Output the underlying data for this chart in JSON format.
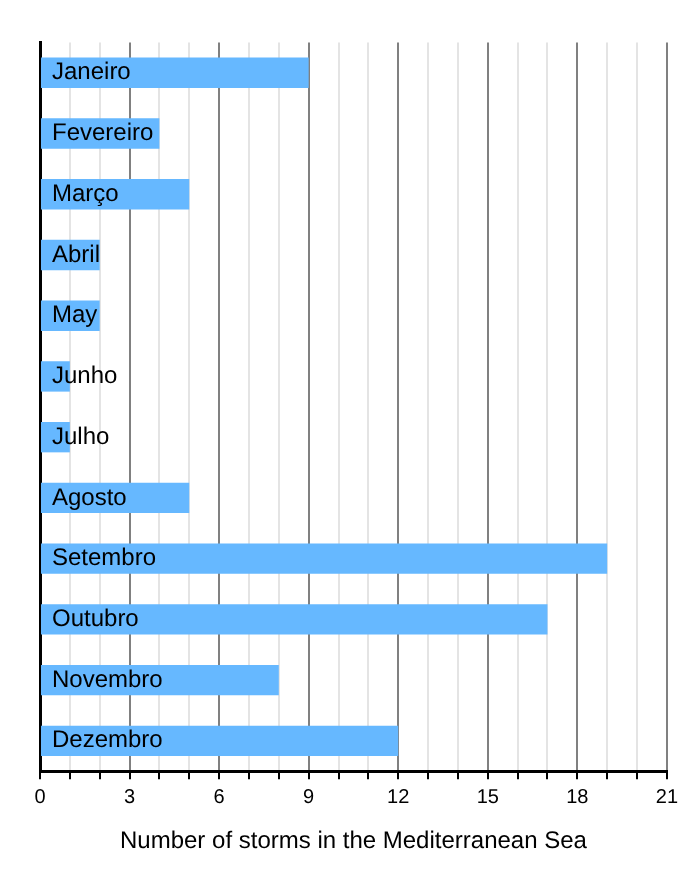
{
  "chart_data": {
    "type": "bar",
    "orientation": "horizontal",
    "xlabel": "Number of storms in the Mediterranean Sea",
    "categories": [
      "Janeiro",
      "Fevereiro",
      "Março",
      "Abril",
      "May",
      "Junho",
      "Julho",
      "Agosto",
      "Setembro",
      "Outubro",
      "Novembro",
      "Dezembro"
    ],
    "values": [
      9,
      4,
      5,
      2,
      2,
      1,
      1,
      5,
      19,
      17,
      8,
      12
    ],
    "color": "#66b8ff",
    "xlim": [
      0,
      21
    ],
    "xticks": [
      0,
      {
        "value": 1,
        "label": null
      },
      {
        "value": 2,
        "label": null
      },
      3,
      {
        "value": 4,
        "label": null
      },
      {
        "value": 5,
        "label": null
      },
      6,
      {
        "value": 7,
        "label": null
      },
      {
        "value": 8,
        "label": null
      },
      9,
      {
        "value": 10,
        "label": null
      },
      {
        "value": 11,
        "label": null
      },
      12,
      {
        "value": 13,
        "label": null
      },
      {
        "value": 14,
        "label": null
      },
      15,
      {
        "value": 16,
        "label": null
      },
      {
        "value": 17,
        "label": null
      },
      18,
      {
        "value": 19,
        "label": null
      },
      {
        "value": 20,
        "label": null
      },
      21
    ],
    "grid": "x"
  }
}
